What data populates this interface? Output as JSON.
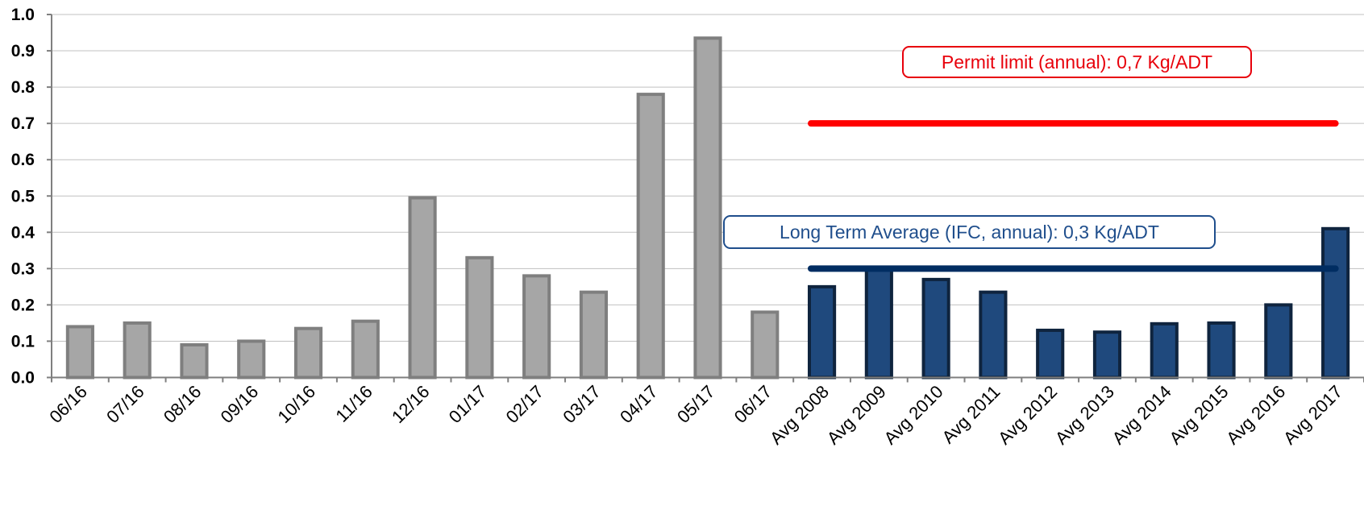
{
  "chart_data": {
    "type": "bar",
    "categories": [
      "06/16",
      "07/16",
      "08/16",
      "09/16",
      "10/16",
      "11/16",
      "12/16",
      "01/17",
      "02/17",
      "03/17",
      "04/17",
      "05/17",
      "06/17",
      "Avg 2008",
      "Avg 2009",
      "Avg 2010",
      "Avg 2011",
      "Avg 2012",
      "Avg 2013",
      "Avg 2014",
      "Avg 2015",
      "Avg 2016",
      "Avg 2017"
    ],
    "values": [
      0.14,
      0.15,
      0.09,
      0.1,
      0.135,
      0.155,
      0.495,
      0.33,
      0.28,
      0.235,
      0.78,
      0.935,
      0.18,
      0.25,
      0.3,
      0.27,
      0.235,
      0.13,
      0.125,
      0.148,
      0.15,
      0.2,
      0.41
    ],
    "bar_colors": [
      "#a6a6a6",
      "#a6a6a6",
      "#a6a6a6",
      "#a6a6a6",
      "#a6a6a6",
      "#a6a6a6",
      "#a6a6a6",
      "#a6a6a6",
      "#a6a6a6",
      "#a6a6a6",
      "#a6a6a6",
      "#a6a6a6",
      "#a6a6a6",
      "#1f497d",
      "#1f497d",
      "#1f497d",
      "#1f497d",
      "#1f497d",
      "#1f497d",
      "#1f497d",
      "#1f497d",
      "#1f497d",
      "#1f497d"
    ],
    "bar_outline_colors": [
      "#7f7f7f",
      "#7f7f7f",
      "#7f7f7f",
      "#7f7f7f",
      "#7f7f7f",
      "#7f7f7f",
      "#7f7f7f",
      "#7f7f7f",
      "#7f7f7f",
      "#7f7f7f",
      "#7f7f7f",
      "#7f7f7f",
      "#7f7f7f",
      "#0f243e",
      "#0f243e",
      "#0f243e",
      "#0f243e",
      "#0f243e",
      "#0f243e",
      "#0f243e",
      "#0f243e",
      "#0f243e",
      "#0f243e"
    ],
    "ylim": [
      0,
      1.0
    ],
    "yticks": [
      "0.0",
      "0.1",
      "0.2",
      "0.3",
      "0.4",
      "0.5",
      "0.6",
      "0.7",
      "0.8",
      "0.9",
      "1.0"
    ],
    "grid": true,
    "reference_lines": [
      {
        "label": "Permit limit (annual): 0,7 Kg/ADT",
        "value": 0.7,
        "from_category": "Avg 2008",
        "to_category": "Avg 2017",
        "color": "#ff0000",
        "text_color": "#e8000b",
        "box_border": "#e8000b"
      },
      {
        "label": "Long Term Average (IFC, annual): 0,3 Kg/ADT",
        "value": 0.3,
        "from_category": "Avg 2008",
        "to_category": "Avg 2017",
        "color": "#002d62",
        "text_color": "#1f4e8c",
        "box_border": "#1f4e8c"
      }
    ]
  }
}
